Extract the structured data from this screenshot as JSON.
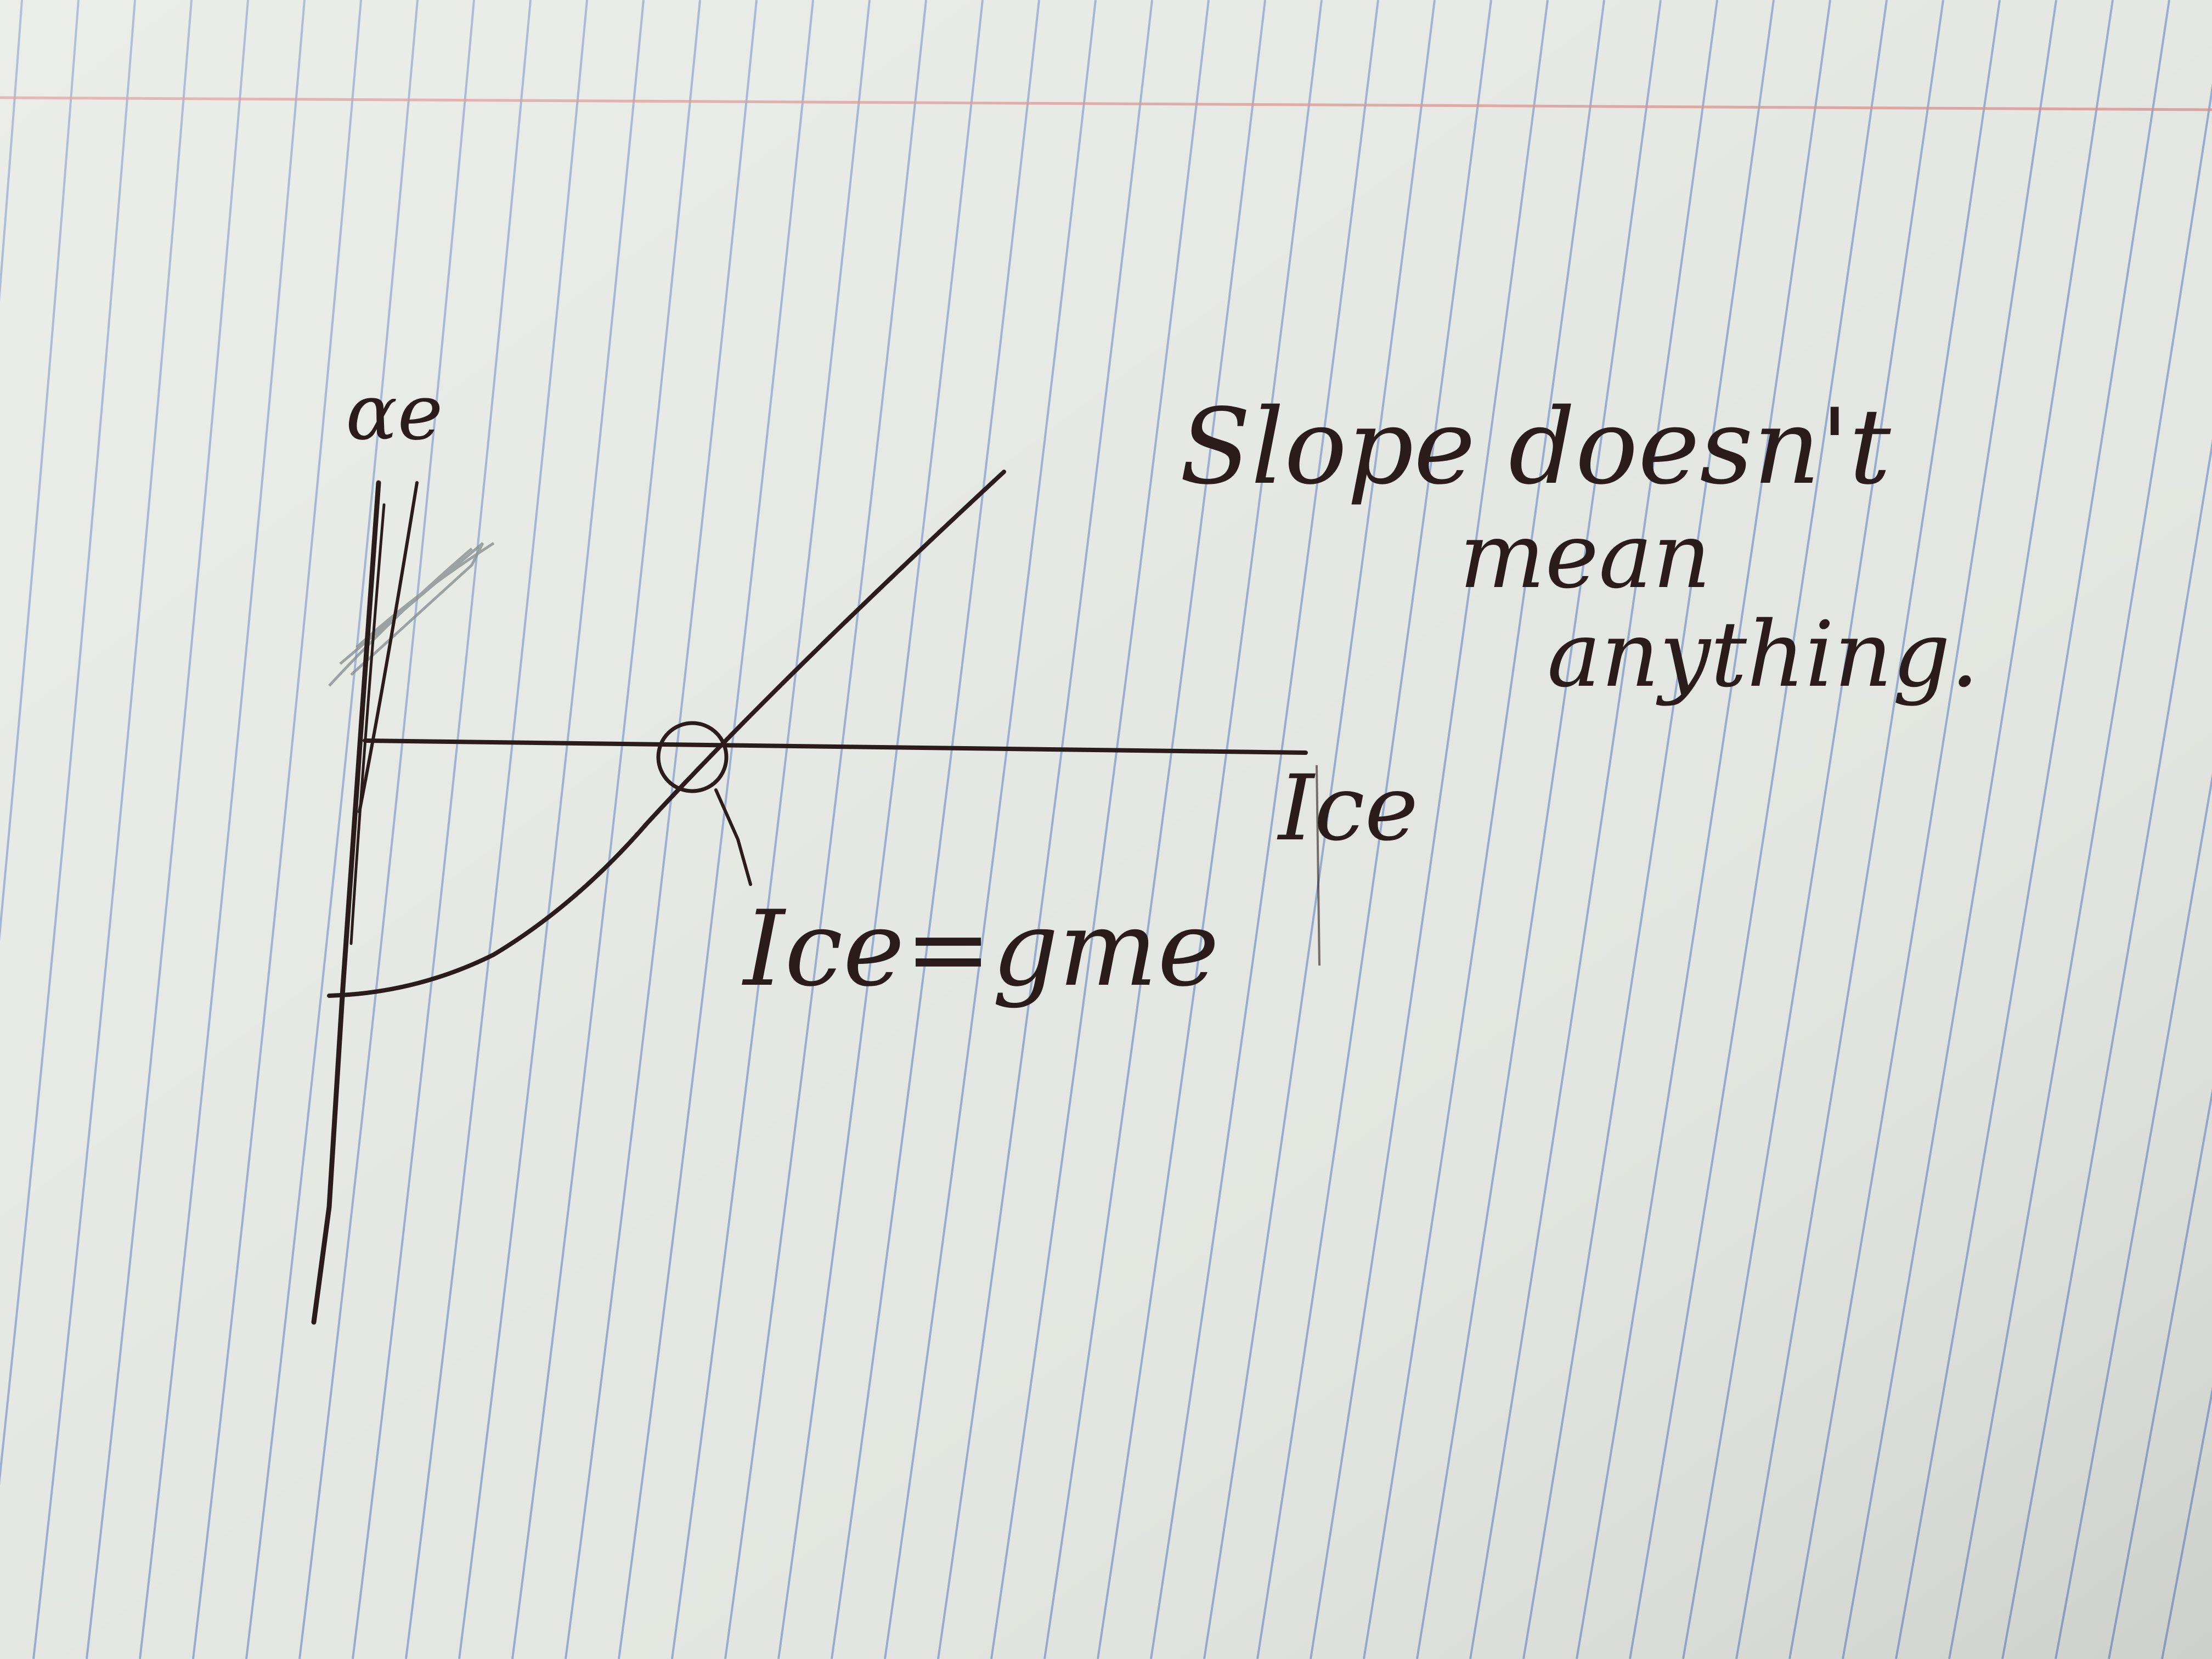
{
  "page": {
    "paper_color": "#e4e7e1",
    "ruled_line_color": "#7d97c8",
    "margin_line_color": "#d98b86",
    "ink_color": "#2a1c1a",
    "pencil_color": "#8a8f92"
  },
  "diagram": {
    "y_axis_label": "αe",
    "x_axis_label": "Ice",
    "intersection_label": "Ice=gme",
    "note_lines": [
      "Slope doesn't",
      "mean",
      "anything."
    ]
  }
}
